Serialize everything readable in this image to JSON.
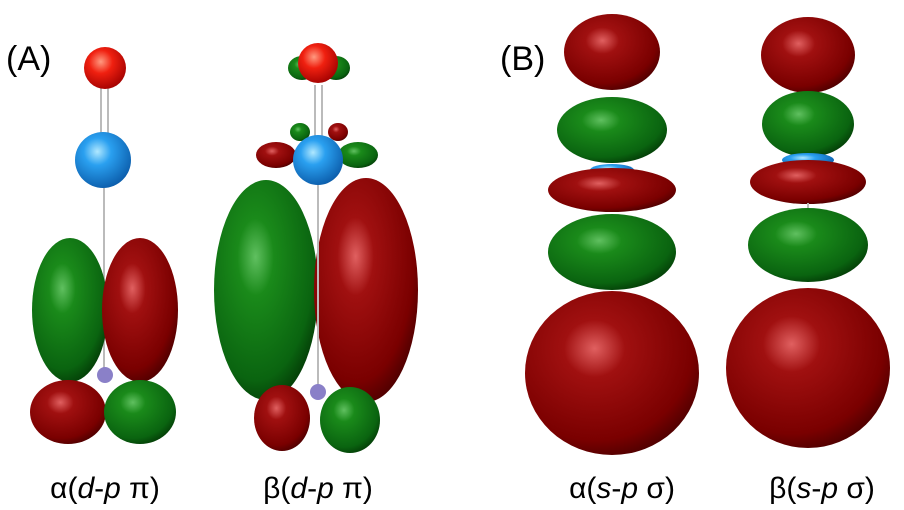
{
  "panels": [
    {
      "label": "(A)",
      "captions": [
        [
          "α(",
          "d",
          "-",
          "p",
          " π)"
        ],
        [
          "β(",
          "d",
          "-",
          "p",
          " π)"
        ]
      ]
    },
    {
      "label": "(B)",
      "captions": [
        [
          "α(",
          "s",
          "-",
          "p",
          " σ)"
        ],
        [
          "β(",
          "s",
          "-",
          "p",
          " σ)"
        ]
      ]
    }
  ]
}
